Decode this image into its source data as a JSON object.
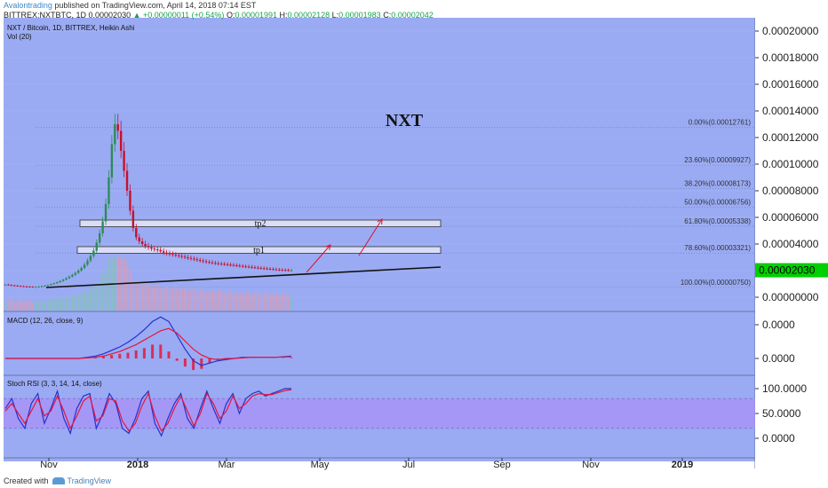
{
  "header": {
    "author": "Avalontrading",
    "published": " published on TradingView.com, April 14, 2018 07:14 EST",
    "symbol": "BITTREX:NXTBTC, 1D",
    "price": "0.00002030",
    "change": "▲ +0.00000011 (+0.54%)",
    "ohlc_o": "O:",
    "o": "0.00001991",
    "ohlc_h": "H:",
    "h": "0.00002128",
    "ohlc_l": "L:",
    "l": "0.00001983",
    "ohlc_c": "C:",
    "c": "0.00002042"
  },
  "footer": {
    "created_with": "Created with",
    "brand": "TradingView"
  },
  "colors": {
    "background": "#9aabf3",
    "up": "#2e8b57",
    "down": "#c8102e",
    "macd": "#2233cc",
    "signal": "#e8163c",
    "histogram": "#e8163c",
    "rsi_band": "#a98ef7",
    "last_price_badge": "#00d000"
  },
  "chart_data": [
    {
      "type": "candlestick",
      "panel": "price",
      "title": "NXT / Bitcoin, 1D, BITTREX, Heikin Ashi",
      "subtitle": "Vol (20)",
      "annotation": "NXT",
      "ylim": [
        -1e-05,
        0.00021
      ],
      "y_ticks": [
        "0.00000000",
        "0.00002000",
        "0.00004000",
        "0.00006000",
        "0.00008000",
        "0.00010000",
        "0.00012000",
        "0.00014000",
        "0.00016000",
        "0.00018000",
        "0.00020000"
      ],
      "last_price": "0.00002030",
      "x_ticks": [
        "Nov",
        "2018",
        "Mar",
        "May",
        "Jul",
        "Sep",
        "Nov",
        "2019"
      ],
      "series": [
        {
          "values": [
            9.5e-06,
            9.2e-06,
            8.9e-06,
            8.7e-06,
            8.5e-06,
            8.3e-06,
            8.1e-06,
            8e-06,
            7.9e-06,
            7.8e-06,
            7.8e-06,
            8e-06,
            8.3e-06,
            8.7e-06,
            9.2e-06,
            9.8e-06,
            1.05e-05,
            1.13e-05,
            1.22e-05,
            1.32e-05,
            1.43e-05,
            1.55e-05,
            1.68e-05,
            1.83e-05,
            2e-05,
            2.2e-05,
            2.45e-05,
            2.75e-05,
            3.1e-05,
            3.5e-05,
            4.1e-05,
            4.8e-05,
            5.7e-05,
            7e-05,
            9e-05,
            0.000115,
            0.00013,
            0.000125,
            0.00011,
            9.5e-05,
            8e-05,
            6.5e-05,
            5.2e-05,
            4.5e-05,
            4.2e-05,
            4e-05,
            3.85e-05,
            3.75e-05,
            3.65e-05,
            3.6e-05,
            3.55e-05,
            3.45e-05,
            3.35e-05,
            3.3e-05,
            3.25e-05,
            3.2e-05,
            3.15e-05,
            3.1e-05,
            3.05e-05,
            3e-05,
            2.95e-05,
            2.9e-05,
            2.85e-05,
            2.8e-05,
            2.75e-05,
            2.7e-05,
            2.65e-05,
            2.62e-05,
            2.58e-05,
            2.55e-05,
            2.52e-05,
            2.5e-05,
            2.48e-05,
            2.45e-05,
            2.43e-05,
            2.4e-05,
            2.38e-05,
            2.35e-05,
            2.32e-05,
            2.3e-05,
            2.28e-05,
            2.25e-05,
            2.23e-05,
            2.2e-05,
            2.18e-05,
            2.16e-05,
            2.14e-05,
            2.12e-05,
            2.1e-05,
            2.08e-05,
            2.06e-05,
            2.05e-05,
            2.04e-05,
            2.03e-05,
            2.03e-05
          ]
        }
      ],
      "zones": [
        {
          "label": "tp2",
          "low": 5.3e-05,
          "high": 5.8e-05
        },
        {
          "label": "tp1",
          "low": 3.3e-05,
          "high": 3.8e-05
        }
      ],
      "fib_levels": [
        {
          "label": "0.00%(0.00012761)",
          "value": 0.00012761
        },
        {
          "label": "23.60%(0.00009927)",
          "value": 9.927e-05
        },
        {
          "label": "38.20%(0.00008173)",
          "value": 8.173e-05
        },
        {
          "label": "50.00%(0.00006756)",
          "value": 6.756e-05
        },
        {
          "label": "61.80%(0.00005338)",
          "value": 5.338e-05
        },
        {
          "label": "78.60%(0.00003321)",
          "value": 3.321e-05
        },
        {
          "label": "100.00%(0.00000750)",
          "value": 7.5e-06
        }
      ]
    },
    {
      "type": "line",
      "panel": "macd",
      "title": "MACD (12, 26, close, 9)",
      "y_ticks": [
        "0.0000",
        "0.0000"
      ],
      "series": [
        {
          "values": [
            0,
            0,
            0,
            0,
            0,
            0,
            0,
            0,
            0,
            0,
            0.1,
            0.2,
            0.4,
            0.7,
            1,
            1.4,
            1.9,
            2.5,
            3.2,
            3.6,
            3.2,
            2,
            0.8,
            -0.2,
            -0.6,
            -0.4,
            -0.2,
            -0.1,
            0,
            0.1,
            0.1,
            0.1,
            0.1,
            0.1,
            0.15,
            0.2
          ]
        },
        {
          "values": [
            0,
            0,
            0,
            0,
            0,
            0,
            0,
            0,
            0,
            0,
            0.05,
            0.1,
            0.2,
            0.4,
            0.6,
            0.9,
            1.2,
            1.6,
            2,
            2.4,
            2.6,
            2.2,
            1.5,
            0.8,
            0.3,
            0,
            -0.1,
            0,
            0,
            0.05,
            0.1,
            0.1,
            0.1,
            0.1,
            0.12,
            0.15
          ]
        }
      ]
    },
    {
      "type": "line",
      "panel": "stoch_rsi",
      "title": "Stoch RSI (3, 3, 14, 14, close)",
      "y_ticks": [
        "100.0000",
        "50.0000",
        "0.0000"
      ],
      "band": [
        20,
        80
      ],
      "series": [
        {
          "values": [
            60,
            80,
            40,
            20,
            70,
            90,
            30,
            60,
            95,
            40,
            10,
            60,
            85,
            90,
            20,
            50,
            90,
            70,
            20,
            10,
            40,
            80,
            95,
            30,
            5,
            40,
            70,
            90,
            40,
            20,
            60,
            95,
            60,
            30,
            70,
            90,
            50,
            80,
            90,
            95,
            85,
            90,
            95,
            100,
            100
          ]
        },
        {
          "values": [
            55,
            70,
            50,
            30,
            55,
            80,
            45,
            55,
            85,
            55,
            20,
            45,
            75,
            85,
            35,
            45,
            80,
            75,
            35,
            15,
            30,
            65,
            90,
            45,
            15,
            30,
            60,
            85,
            55,
            25,
            50,
            90,
            70,
            40,
            55,
            85,
            60,
            70,
            85,
            90,
            88,
            88,
            92,
            96,
            98
          ]
        }
      ]
    }
  ]
}
